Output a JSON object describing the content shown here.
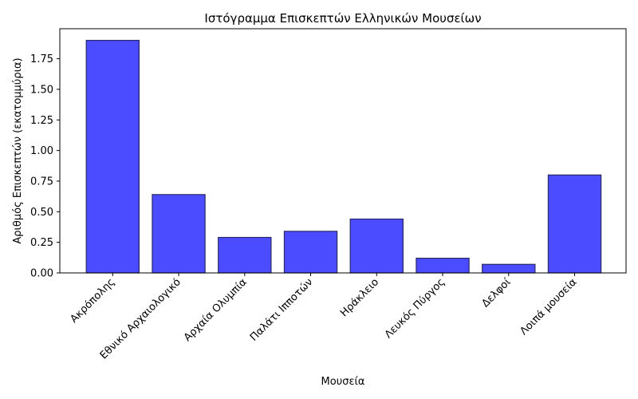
{
  "chart_data": {
    "type": "bar",
    "title": "Ιστόγραμμα Επισκεπτών Ελληνικών Μουσείων",
    "xlabel": "Μουσεία",
    "ylabel": "Αριθμός Επισκεπτών (εκατομμύρια)",
    "categories": [
      "Ακρόπολης",
      "Εθνικό Αρχαιολογικό",
      "Αρχαία Ολυμπία",
      "Παλάτι Ιπποτών",
      "Ηράκλειο",
      "Λευκός Πύργος",
      "Δελφοί",
      "Λοιπά μουσεία"
    ],
    "values": [
      1.9,
      0.64,
      0.29,
      0.34,
      0.44,
      0.12,
      0.07,
      0.8
    ],
    "ylim": [
      0,
      1.995
    ],
    "yticks": [
      "0.00",
      "0.25",
      "0.50",
      "0.75",
      "1.00",
      "1.25",
      "1.50",
      "1.75"
    ],
    "grid": false,
    "bar_color": "#4b4bff",
    "bar_edge_color": "#2a2a66"
  }
}
